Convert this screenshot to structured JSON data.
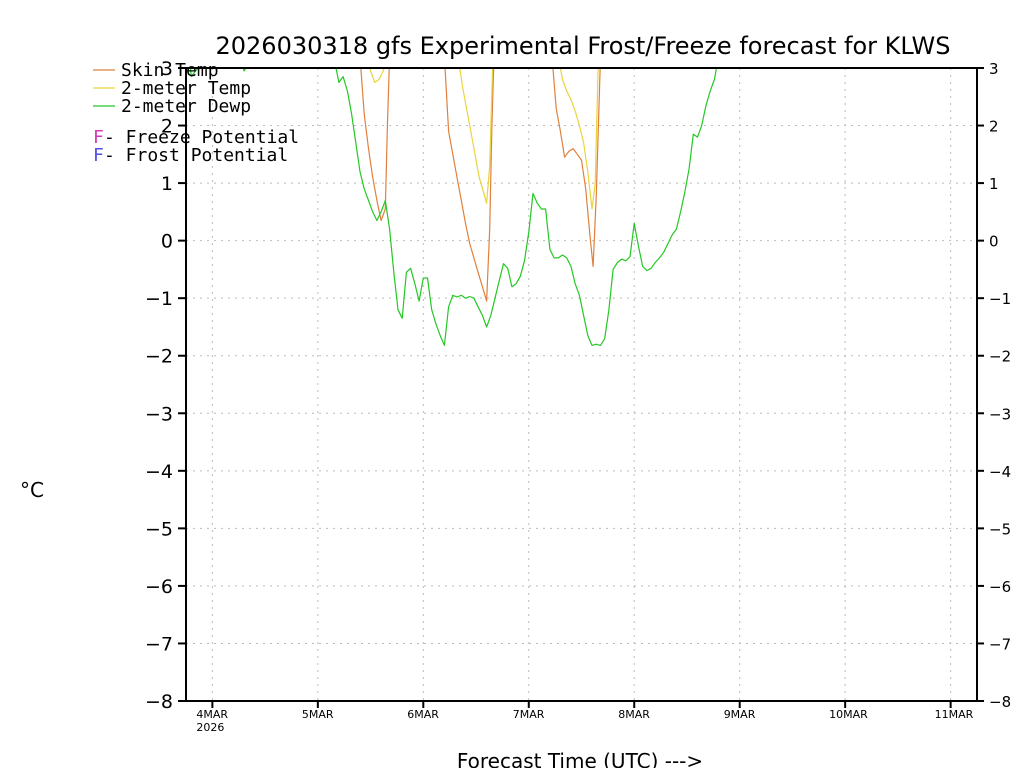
{
  "chart_data": {
    "type": "line",
    "title": "2026030318 gfs Experimental Frost/Freeze forecast for KLWS",
    "ylabel": "°C",
    "xlabel": "Forecast Time (UTC) --->",
    "ylim": [
      -8,
      3
    ],
    "xlim": [
      -0.25,
      7.25
    ],
    "yticks": [
      "-8",
      "-7",
      "-6",
      "-5",
      "-4",
      "-3",
      "-2",
      "-1",
      "0",
      "1",
      "2",
      "3"
    ],
    "right_yticks": [
      "-8",
      "-7",
      "-6",
      "-5",
      "-4",
      "-3",
      "-2",
      "-1",
      "0",
      "1",
      "2",
      "3"
    ],
    "xticks": [
      {
        "label": "4MAR",
        "sub": "2026",
        "x": 0
      },
      {
        "label": "5MAR",
        "sub": "",
        "x": 1
      },
      {
        "label": "6MAR",
        "sub": "",
        "x": 2
      },
      {
        "label": "7MAR",
        "sub": "",
        "x": 3
      },
      {
        "label": "8MAR",
        "sub": "",
        "x": 4
      },
      {
        "label": "9MAR",
        "sub": "",
        "x": 5
      },
      {
        "label": "10MAR",
        "sub": "",
        "x": 6
      },
      {
        "label": "11MAR",
        "sub": "",
        "x": 7
      }
    ],
    "grid": true,
    "legend": [
      {
        "label": "Skin Temp",
        "color": "#e0803c"
      },
      {
        "label": "2-meter Temp",
        "color": "#e8d43c"
      },
      {
        "label": "2-meter Dewp",
        "color": "#24c824"
      }
    ],
    "potential_legend": [
      {
        "mark": "F",
        "label": " - Freeze Potential",
        "color": "#d23cb4"
      },
      {
        "mark": "F",
        "label": " - Frost Potential",
        "color": "#5050e6"
      }
    ],
    "series": [
      {
        "name": "Skin Temp",
        "color": "#e0803c",
        "segments": [
          [
            [
              1.4,
              3.2
            ],
            [
              1.44,
              2.2
            ],
            [
              1.48,
              1.6
            ],
            [
              1.52,
              1.1
            ],
            [
              1.56,
              0.7
            ],
            [
              1.6,
              0.35
            ],
            [
              1.64,
              0.55
            ],
            [
              1.66,
              2.0
            ],
            [
              1.68,
              3.2
            ]
          ],
          [
            [
              2.2,
              3.2
            ],
            [
              2.24,
              1.9
            ],
            [
              2.28,
              1.5
            ],
            [
              2.32,
              1.1
            ],
            [
              2.36,
              0.7
            ],
            [
              2.4,
              0.3
            ],
            [
              2.44,
              -0.05
            ],
            [
              2.48,
              -0.3
            ],
            [
              2.52,
              -0.55
            ],
            [
              2.56,
              -0.8
            ],
            [
              2.6,
              -1.05
            ],
            [
              2.63,
              0.2
            ],
            [
              2.65,
              2.0
            ],
            [
              2.67,
              3.2
            ]
          ],
          [
            [
              3.22,
              3.2
            ],
            [
              3.26,
              2.3
            ],
            [
              3.3,
              1.9
            ],
            [
              3.34,
              1.45
            ],
            [
              3.38,
              1.55
            ],
            [
              3.42,
              1.6
            ],
            [
              3.46,
              1.5
            ],
            [
              3.5,
              1.4
            ],
            [
              3.54,
              0.9
            ],
            [
              3.58,
              0.1
            ],
            [
              3.61,
              -0.45
            ],
            [
              3.64,
              0.8
            ],
            [
              3.68,
              3.2
            ]
          ]
        ]
      },
      {
        "name": "2-meter Temp",
        "color": "#e8d43c",
        "segments": [
          [
            [
              1.46,
              3.2
            ],
            [
              1.5,
              2.95
            ],
            [
              1.54,
              2.75
            ],
            [
              1.58,
              2.8
            ],
            [
              1.62,
              2.95
            ],
            [
              1.66,
              3.2
            ]
          ],
          [
            [
              2.33,
              3.2
            ],
            [
              2.37,
              2.7
            ],
            [
              2.41,
              2.3
            ],
            [
              2.45,
              1.9
            ],
            [
              2.49,
              1.5
            ],
            [
              2.53,
              1.1
            ],
            [
              2.57,
              0.85
            ],
            [
              2.6,
              0.65
            ],
            [
              2.63,
              1.3
            ],
            [
              2.66,
              3.2
            ]
          ],
          [
            [
              3.28,
              3.2
            ],
            [
              3.32,
              2.8
            ],
            [
              3.36,
              2.6
            ],
            [
              3.4,
              2.45
            ],
            [
              3.44,
              2.25
            ],
            [
              3.48,
              2.0
            ],
            [
              3.52,
              1.7
            ],
            [
              3.56,
              1.2
            ],
            [
              3.6,
              0.55
            ],
            [
              3.63,
              1.0
            ],
            [
              3.66,
              3.2
            ]
          ]
        ]
      },
      {
        "name": "2-meter Dewp",
        "color": "#24c824",
        "segments": [
          [
            [
              -0.22,
              3.2
            ],
            [
              -0.2,
              2.85
            ],
            [
              -0.16,
              2.95
            ],
            [
              -0.1,
              3.05
            ],
            [
              0.0,
              3.2
            ]
          ],
          [
            [
              0.0,
              3.2
            ],
            [
              0.28,
              3.1
            ],
            [
              0.3,
              2.95
            ],
            [
              0.34,
              3.05
            ],
            [
              0.38,
              3.2
            ]
          ],
          [
            [
              1.15,
              3.2
            ],
            [
              1.2,
              2.75
            ],
            [
              1.24,
              2.85
            ],
            [
              1.28,
              2.6
            ],
            [
              1.32,
              2.2
            ],
            [
              1.36,
              1.7
            ],
            [
              1.4,
              1.2
            ],
            [
              1.44,
              0.9
            ],
            [
              1.48,
              0.7
            ],
            [
              1.52,
              0.5
            ],
            [
              1.56,
              0.35
            ],
            [
              1.6,
              0.5
            ],
            [
              1.64,
              0.7
            ],
            [
              1.68,
              0.2
            ],
            [
              1.72,
              -0.55
            ],
            [
              1.76,
              -1.2
            ],
            [
              1.8,
              -1.35
            ],
            [
              1.84,
              -0.55
            ],
            [
              1.88,
              -0.48
            ],
            [
              1.92,
              -0.75
            ],
            [
              1.96,
              -1.05
            ],
            [
              2.0,
              -0.65
            ],
            [
              2.04,
              -0.65
            ],
            [
              2.08,
              -1.2
            ],
            [
              2.12,
              -1.45
            ],
            [
              2.16,
              -1.65
            ],
            [
              2.2,
              -1.82
            ],
            [
              2.24,
              -1.15
            ],
            [
              2.28,
              -0.95
            ],
            [
              2.32,
              -0.98
            ],
            [
              2.36,
              -0.95
            ],
            [
              2.4,
              -1.0
            ],
            [
              2.44,
              -0.97
            ],
            [
              2.48,
              -1.0
            ],
            [
              2.52,
              -1.15
            ],
            [
              2.56,
              -1.3
            ],
            [
              2.6,
              -1.5
            ],
            [
              2.64,
              -1.3
            ],
            [
              2.68,
              -1.0
            ],
            [
              2.72,
              -0.7
            ],
            [
              2.76,
              -0.4
            ],
            [
              2.8,
              -0.48
            ],
            [
              2.84,
              -0.8
            ],
            [
              2.88,
              -0.75
            ],
            [
              2.92,
              -0.62
            ],
            [
              2.96,
              -0.35
            ],
            [
              3.0,
              0.15
            ],
            [
              3.04,
              0.82
            ],
            [
              3.08,
              0.65
            ],
            [
              3.12,
              0.55
            ],
            [
              3.16,
              0.55
            ],
            [
              3.2,
              -0.15
            ],
            [
              3.24,
              -0.3
            ],
            [
              3.28,
              -0.3
            ],
            [
              3.32,
              -0.25
            ],
            [
              3.36,
              -0.3
            ],
            [
              3.4,
              -0.45
            ],
            [
              3.44,
              -0.75
            ],
            [
              3.48,
              -0.95
            ],
            [
              3.52,
              -1.3
            ],
            [
              3.56,
              -1.65
            ],
            [
              3.6,
              -1.82
            ],
            [
              3.64,
              -1.8
            ],
            [
              3.68,
              -1.82
            ],
            [
              3.72,
              -1.7
            ],
            [
              3.76,
              -1.2
            ],
            [
              3.8,
              -0.5
            ],
            [
              3.84,
              -0.38
            ],
            [
              3.88,
              -0.32
            ],
            [
              3.92,
              -0.35
            ],
            [
              3.96,
              -0.28
            ],
            [
              4.0,
              0.3
            ],
            [
              4.04,
              -0.1
            ],
            [
              4.08,
              -0.45
            ],
            [
              4.12,
              -0.52
            ],
            [
              4.16,
              -0.48
            ],
            [
              4.2,
              -0.38
            ],
            [
              4.24,
              -0.3
            ],
            [
              4.28,
              -0.2
            ],
            [
              4.32,
              -0.05
            ],
            [
              4.36,
              0.1
            ],
            [
              4.4,
              0.2
            ],
            [
              4.44,
              0.5
            ],
            [
              4.48,
              0.85
            ],
            [
              4.52,
              1.25
            ],
            [
              4.56,
              1.85
            ],
            [
              4.6,
              1.8
            ],
            [
              4.64,
              2.0
            ],
            [
              4.68,
              2.35
            ],
            [
              4.72,
              2.6
            ],
            [
              4.76,
              2.8
            ],
            [
              4.8,
              3.2
            ]
          ]
        ]
      }
    ]
  }
}
